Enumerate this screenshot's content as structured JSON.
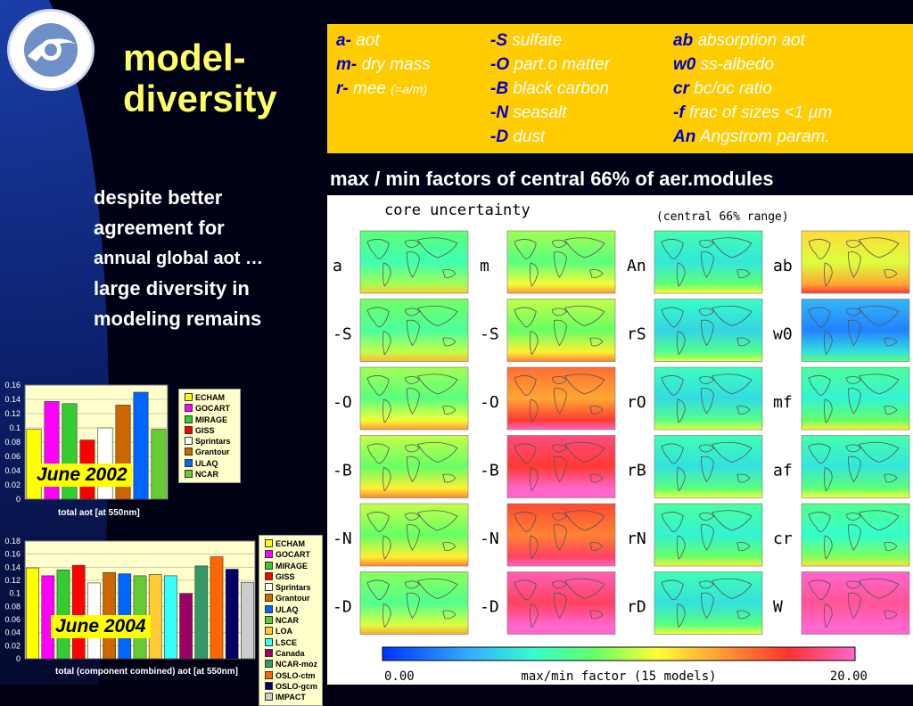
{
  "slide": {
    "title_line1": "model-",
    "title_line2": "diversity",
    "subtitle": "max / min factors of central 66% of aer.modules",
    "text_line1": "despite better",
    "text_line2": "agreement for",
    "text_line3": "annual global aot …",
    "text_line4": "large diversity in",
    "text_line5": "modeling remains"
  },
  "legend_box": {
    "col1": [
      {
        "code": "a-",
        "desc": "aot",
        "extra": ""
      },
      {
        "code": "m-",
        "desc": "dry mass",
        "extra": ""
      },
      {
        "code": "r-",
        "desc": "mee",
        "extra": "(=a/m)"
      }
    ],
    "col2": [
      {
        "code": "-S",
        "desc": "sulfate"
      },
      {
        "code": "-O",
        "desc": "part.o matter"
      },
      {
        "code": "-B",
        "desc": "black carbon"
      },
      {
        "code": "-N",
        "desc": "seasalt"
      },
      {
        "code": "-D",
        "desc": "dust"
      }
    ],
    "col3": [
      {
        "code": "ab",
        "desc": "absorption aot"
      },
      {
        "code": "w0",
        "desc": "ss-albedo"
      },
      {
        "code": "cr",
        "desc": "bc/oc ratio"
      },
      {
        "code": "-f",
        "desc": "frac of sizes <1 µm"
      },
      {
        "code": "An",
        "desc": "Angstrom param."
      }
    ]
  },
  "map_figure": {
    "title": "core uncertainty",
    "range_note": "(central 66% range)",
    "colorbar_min": "0.00",
    "colorbar_label": "max/min factor (15 models)",
    "colorbar_max": "20.00",
    "rows": [
      {
        "labels": [
          "a",
          "m",
          "An",
          "ab"
        ],
        "levels": [
          0.35,
          0.42,
          0.28,
          0.55
        ]
      },
      {
        "labels": [
          "-S",
          "-S",
          "rS",
          "w0"
        ],
        "levels": [
          0.38,
          0.45,
          0.25,
          0.12
        ]
      },
      {
        "labels": [
          "-O",
          "-O",
          "rO",
          "mf"
        ],
        "levels": [
          0.42,
          0.7,
          0.26,
          0.3
        ]
      },
      {
        "labels": [
          "-B",
          "-B",
          "rB",
          "af"
        ],
        "levels": [
          0.45,
          0.85,
          0.27,
          0.28
        ]
      },
      {
        "labels": [
          "-N",
          "-N",
          "rN",
          "cr"
        ],
        "levels": [
          0.45,
          0.75,
          0.3,
          0.32
        ]
      },
      {
        "labels": [
          "-D",
          "-D",
          "rD",
          "W"
        ],
        "levels": [
          0.4,
          0.9,
          0.27,
          0.95
        ]
      }
    ]
  },
  "chart_data": [
    {
      "type": "bar",
      "title": "June 2002",
      "xlabel": "total aot  [at 550nm]",
      "ylim": [
        0,
        0.16
      ],
      "yticks": [
        "0",
        "0.02",
        "0.04",
        "0.06",
        "0.08",
        "0.1",
        "0.12",
        "0.14",
        "0.16"
      ],
      "series": [
        {
          "name": "ECHAM",
          "value": 0.098,
          "color": "#ffff00"
        },
        {
          "name": "GOCART",
          "value": 0.137,
          "color": "#ff00ff"
        },
        {
          "name": "MIRAGE",
          "value": 0.134,
          "color": "#33cc33"
        },
        {
          "name": "GISS",
          "value": 0.083,
          "color": "#ff0000"
        },
        {
          "name": "Sprintars",
          "value": 0.1,
          "color": "#ffffff"
        },
        {
          "name": "Grantour",
          "value": 0.132,
          "color": "#cc6600"
        },
        {
          "name": "ULAQ",
          "value": 0.15,
          "color": "#0066ff"
        },
        {
          "name": "NCAR",
          "value": 0.098,
          "color": "#66cc33"
        }
      ]
    },
    {
      "type": "bar",
      "title": "June 2004",
      "xlabel": "total (component combined) aot  [at 550nm]",
      "ylim": [
        0,
        0.18
      ],
      "yticks": [
        "0",
        "0.02",
        "0.04",
        "0.06",
        "0.08",
        "0.1",
        "0.12",
        "0.14",
        "0.16",
        "0.18"
      ],
      "series": [
        {
          "name": "ECHAM",
          "value": 0.139,
          "color": "#ffff00"
        },
        {
          "name": "GOCART",
          "value": 0.127,
          "color": "#ff00ff"
        },
        {
          "name": "MIRAGE",
          "value": 0.136,
          "color": "#33cc33"
        },
        {
          "name": "GISS",
          "value": 0.143,
          "color": "#ff0000"
        },
        {
          "name": "Sprintars",
          "value": 0.116,
          "color": "#ffffff"
        },
        {
          "name": "Grantour",
          "value": 0.132,
          "color": "#cc6600"
        },
        {
          "name": "ULAQ",
          "value": 0.13,
          "color": "#0066ff"
        },
        {
          "name": "NCAR",
          "value": 0.127,
          "color": "#66cc33"
        },
        {
          "name": "LOA",
          "value": 0.129,
          "color": "#ffcc33"
        },
        {
          "name": "LSCE",
          "value": 0.127,
          "color": "#33ffff"
        },
        {
          "name": "Canada",
          "value": 0.1,
          "color": "#990066"
        },
        {
          "name": "NCAR-moz",
          "value": 0.142,
          "color": "#339966"
        },
        {
          "name": "OSLO-ctm",
          "value": 0.156,
          "color": "#ff6600"
        },
        {
          "name": "OSLO-gcm",
          "value": 0.137,
          "color": "#000066"
        },
        {
          "name": "IMPACT",
          "value": 0.117,
          "color": "#cccccc"
        }
      ]
    }
  ]
}
